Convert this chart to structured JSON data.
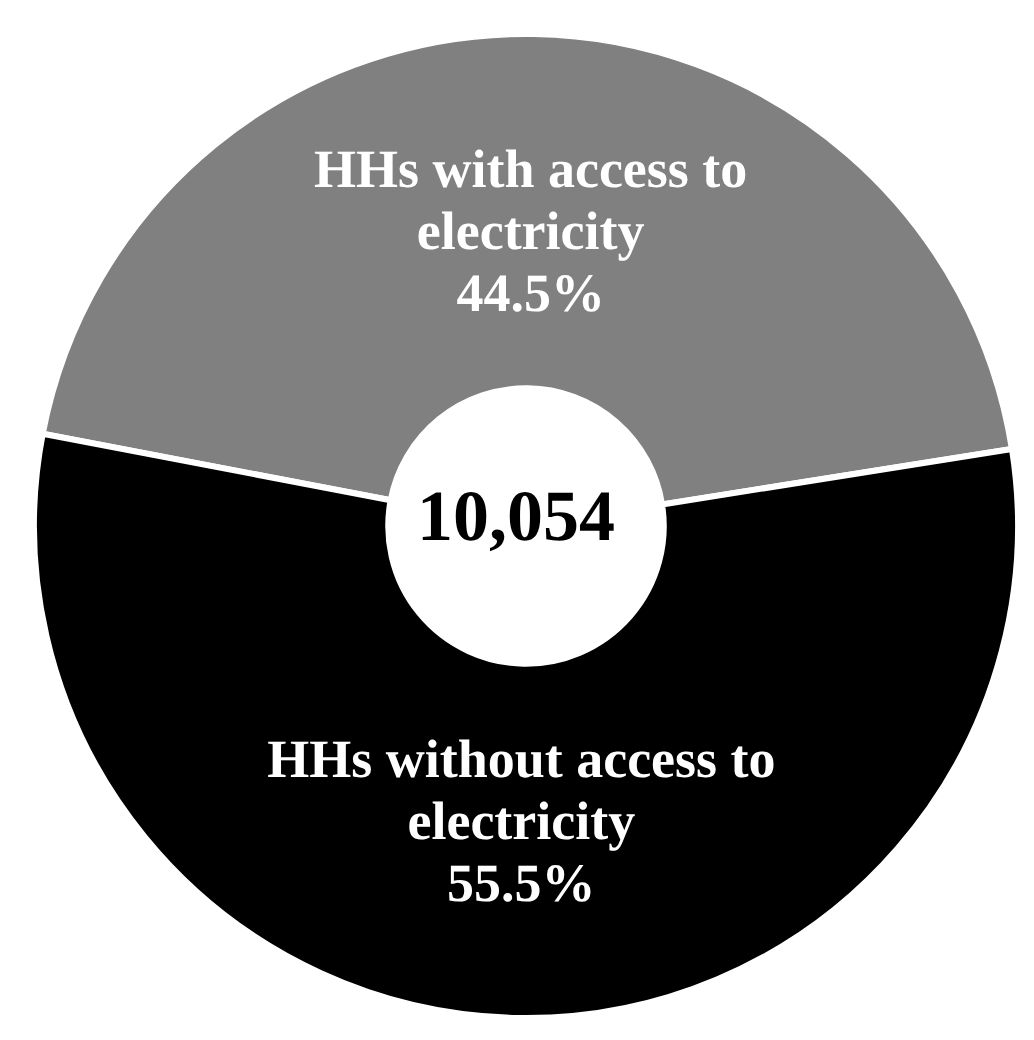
{
  "chart_data": {
    "type": "donut",
    "categories": [
      "HHs with access to electricity",
      "HHs without access to electricity"
    ],
    "values": [
      44.5,
      55.5
    ],
    "colors": [
      "#808080",
      "#000000"
    ],
    "value_labels": [
      "44.5%",
      "55.5%"
    ],
    "annotations": [
      "10,054"
    ]
  }
}
